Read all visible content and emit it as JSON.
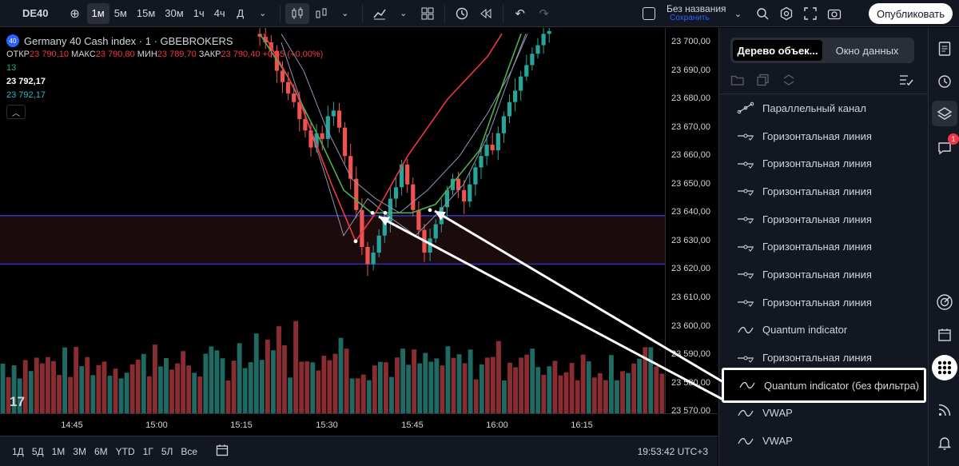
{
  "toolbar": {
    "symbol": "DE40",
    "add_icon": "plus-circle-icon",
    "intervals": [
      "1м",
      "5м",
      "15м",
      "30м",
      "1ч",
      "4ч",
      "Д"
    ],
    "active_interval": "1м",
    "layout_name": "Без названия",
    "layout_save": "Сохранить",
    "publish_label": "Опубликовать"
  },
  "legend": {
    "title": "Germany 40 Cash index · 1 · GBEBROKERS",
    "badge": "40",
    "open_label": "ОТКР",
    "open": "23 790,10",
    "high_label": "МАКС",
    "high": "23 790,80",
    "low_label": "МИН",
    "low": "23 789,70",
    "close_label": "ЗАКР",
    "close": "23 790,40",
    "change": "+0,55 (+0,00%)",
    "line1": "13",
    "line2": "23 792,17",
    "line3": "23 792,17"
  },
  "chart_data": {
    "type": "candlestick",
    "symbol": "DE40",
    "interval": "1м",
    "y_ticks": [
      "23 700,00",
      "23 690,00",
      "23 680,00",
      "23 670,00",
      "23 660,00",
      "23 650,00",
      "23 640,00",
      "23 630,00",
      "23 620,00",
      "23 610,00",
      "23 600,00",
      "23 590,00",
      "23 580,00",
      "23 570,00"
    ],
    "y_range": [
      23568,
      23705
    ],
    "x_ticks": [
      "14:45",
      "15:00",
      "15:15",
      "15:30",
      "15:45",
      "16:00",
      "16:15"
    ],
    "zone": {
      "from": 23622,
      "to": 23639
    },
    "colors": {
      "up": "#26a69a",
      "down": "#ef5350",
      "zone_border": "#3a3af0",
      "zone_fill": "#1c0b0d",
      "green_line": "#4caf50",
      "red_line": "#f23645",
      "band": "#8f98b5"
    }
  },
  "bottombar": {
    "ranges": [
      "1Д",
      "5Д",
      "1М",
      "3М",
      "6М",
      "YTD",
      "1Г",
      "5Л",
      "Все"
    ],
    "clock": "19:53:42 UTC+3"
  },
  "panel": {
    "tab_tree": "Дерево объек...",
    "tab_data": "Окно данных",
    "items": [
      {
        "label": "Параллельный канал",
        "icon": "parallel-channel-icon"
      },
      {
        "label": "Горизонтальная линия",
        "icon": "horizontal-line-icon"
      },
      {
        "label": "Горизонтальная линия",
        "icon": "horizontal-line-icon"
      },
      {
        "label": "Горизонтальная линия",
        "icon": "horizontal-line-icon"
      },
      {
        "label": "Горизонтальная линия",
        "icon": "horizontal-line-icon"
      },
      {
        "label": "Горизонтальная линия",
        "icon": "horizontal-line-icon"
      },
      {
        "label": "Горизонтальная линия",
        "icon": "horizontal-line-icon"
      },
      {
        "label": "Горизонтальная линия",
        "icon": "horizontal-line-icon"
      },
      {
        "label": "Quantum indicator",
        "icon": "indicator-wave-icon"
      },
      {
        "label": "Горизонтальная линия",
        "icon": "horizontal-line-icon"
      },
      {
        "label": "Quantum indicator (без фильтра)",
        "icon": "indicator-wave-icon",
        "highlighted": true
      },
      {
        "label": "VWAP",
        "icon": "indicator-wave-icon"
      },
      {
        "label": "VWAP",
        "icon": "indicator-wave-icon"
      }
    ]
  },
  "sidebar": {
    "notifications": "1"
  }
}
